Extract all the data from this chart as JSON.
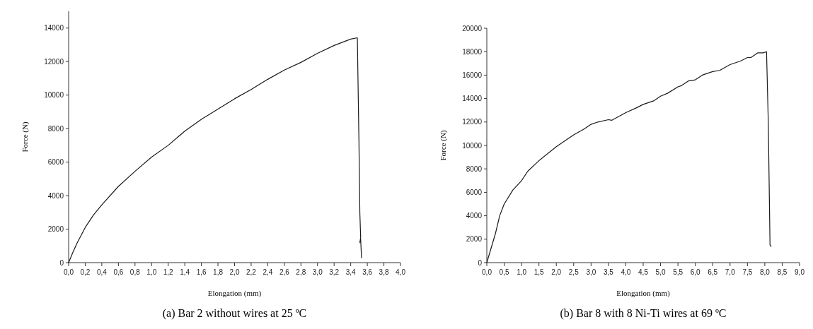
{
  "chart_data": [
    {
      "type": "line",
      "title": "(a) Bar 2 without wires at 25 ºC",
      "xlabel": "Elongation (mm)",
      "ylabel": "Force (N)",
      "color": "#1a1a1a",
      "x": [
        0,
        0.05,
        0.1,
        0.2,
        0.3,
        0.4,
        0.6,
        0.8,
        1.0,
        1.2,
        1.4,
        1.6,
        1.8,
        2.0,
        2.2,
        2.4,
        2.6,
        2.8,
        3.0,
        3.2,
        3.4,
        3.48,
        3.5,
        3.51,
        3.52,
        3.51,
        3.52,
        3.53
      ],
      "values": [
        0,
        600,
        1150,
        2100,
        2850,
        3450,
        4550,
        5450,
        6300,
        7000,
        7850,
        8550,
        9160,
        9780,
        10330,
        10940,
        11490,
        11950,
        12490,
        12960,
        13340,
        13420,
        7000,
        3000,
        1500,
        1200,
        1400,
        300
      ],
      "xlim": [
        0,
        4.0
      ],
      "xticks": [
        {
          "value": 0,
          "label": "0,0"
        },
        {
          "value": 0.2,
          "label": "0,2"
        },
        {
          "value": 0.4,
          "label": "0,4"
        },
        {
          "value": 0.6,
          "label": "0,6"
        },
        {
          "value": 0.8,
          "label": "0,8"
        },
        {
          "value": 1.0,
          "label": "1,0"
        },
        {
          "value": 1.2,
          "label": "1,2"
        },
        {
          "value": 1.4,
          "label": "1,4"
        },
        {
          "value": 1.6,
          "label": "1,6"
        },
        {
          "value": 1.8,
          "label": "1,8"
        },
        {
          "value": 2.0,
          "label": "2,0"
        },
        {
          "value": 2.2,
          "label": "2,2"
        },
        {
          "value": 2.4,
          "label": "2,4"
        },
        {
          "value": 2.6,
          "label": "2,6"
        },
        {
          "value": 2.8,
          "label": "2,8"
        },
        {
          "value": 3.0,
          "label": "3,0"
        },
        {
          "value": 3.2,
          "label": "3,2"
        },
        {
          "value": 3.4,
          "label": "3,4"
        },
        {
          "value": 3.6,
          "label": "3,6"
        },
        {
          "value": 3.8,
          "label": "3,8"
        },
        {
          "value": 4.0,
          "label": "4,0"
        }
      ],
      "ylim": [
        0,
        15000
      ],
      "yticks": [
        0,
        2000,
        4000,
        6000,
        8000,
        10000,
        12000,
        14000
      ]
    },
    {
      "type": "line",
      "title": "(b) Bar 8 with 8 Ni-Ti wires at 69 ºC",
      "xlabel": "Elongation (mm)",
      "ylabel": "Force (N)",
      "color": "#1a1a1a",
      "x": [
        0,
        0.25,
        0.37,
        0.5,
        0.75,
        1.0,
        1.18,
        1.5,
        2.0,
        2.5,
        2.8,
        3.0,
        3.2,
        3.5,
        3.6,
        4.0,
        4.3,
        4.5,
        4.8,
        5.0,
        5.2,
        5.5,
        5.6,
        5.8,
        6.0,
        6.2,
        6.5,
        6.7,
        7.0,
        7.3,
        7.5,
        7.6,
        7.8,
        7.95,
        8.05,
        8.1,
        8.15,
        8.18
      ],
      "values": [
        0,
        2500,
        4000,
        5000,
        6200,
        7000,
        7800,
        8700,
        9900,
        10900,
        11400,
        11800,
        12000,
        12200,
        12150,
        12800,
        13200,
        13500,
        13800,
        14200,
        14450,
        15000,
        15100,
        15500,
        15600,
        16000,
        16300,
        16400,
        16900,
        17200,
        17500,
        17500,
        17900,
        17900,
        18000,
        12000,
        1500,
        1400
      ],
      "xlim": [
        0,
        9.0
      ],
      "xticks": [
        {
          "value": 0,
          "label": "0,0"
        },
        {
          "value": 0.5,
          "label": "0,5"
        },
        {
          "value": 1.0,
          "label": "1,0"
        },
        {
          "value": 1.5,
          "label": "1,5"
        },
        {
          "value": 2.0,
          "label": "2,0"
        },
        {
          "value": 2.5,
          "label": "2,5"
        },
        {
          "value": 3.0,
          "label": "3,0"
        },
        {
          "value": 3.5,
          "label": "3,5"
        },
        {
          "value": 4.0,
          "label": "4,0"
        },
        {
          "value": 4.5,
          "label": "4,5"
        },
        {
          "value": 5.0,
          "label": "5,0"
        },
        {
          "value": 5.5,
          "label": "5,5"
        },
        {
          "value": 6.0,
          "label": "6,0"
        },
        {
          "value": 6.5,
          "label": "6,5"
        },
        {
          "value": 7.0,
          "label": "7,0"
        },
        {
          "value": 7.5,
          "label": "7,5"
        },
        {
          "value": 8.0,
          "label": "8,0"
        },
        {
          "value": 8.5,
          "label": "8,5"
        },
        {
          "value": 9.0,
          "label": "9,0"
        }
      ],
      "ylim": [
        0,
        20000
      ],
      "yticks": [
        0,
        2000,
        4000,
        6000,
        8000,
        10000,
        12000,
        14000,
        16000,
        18000,
        20000
      ]
    }
  ]
}
